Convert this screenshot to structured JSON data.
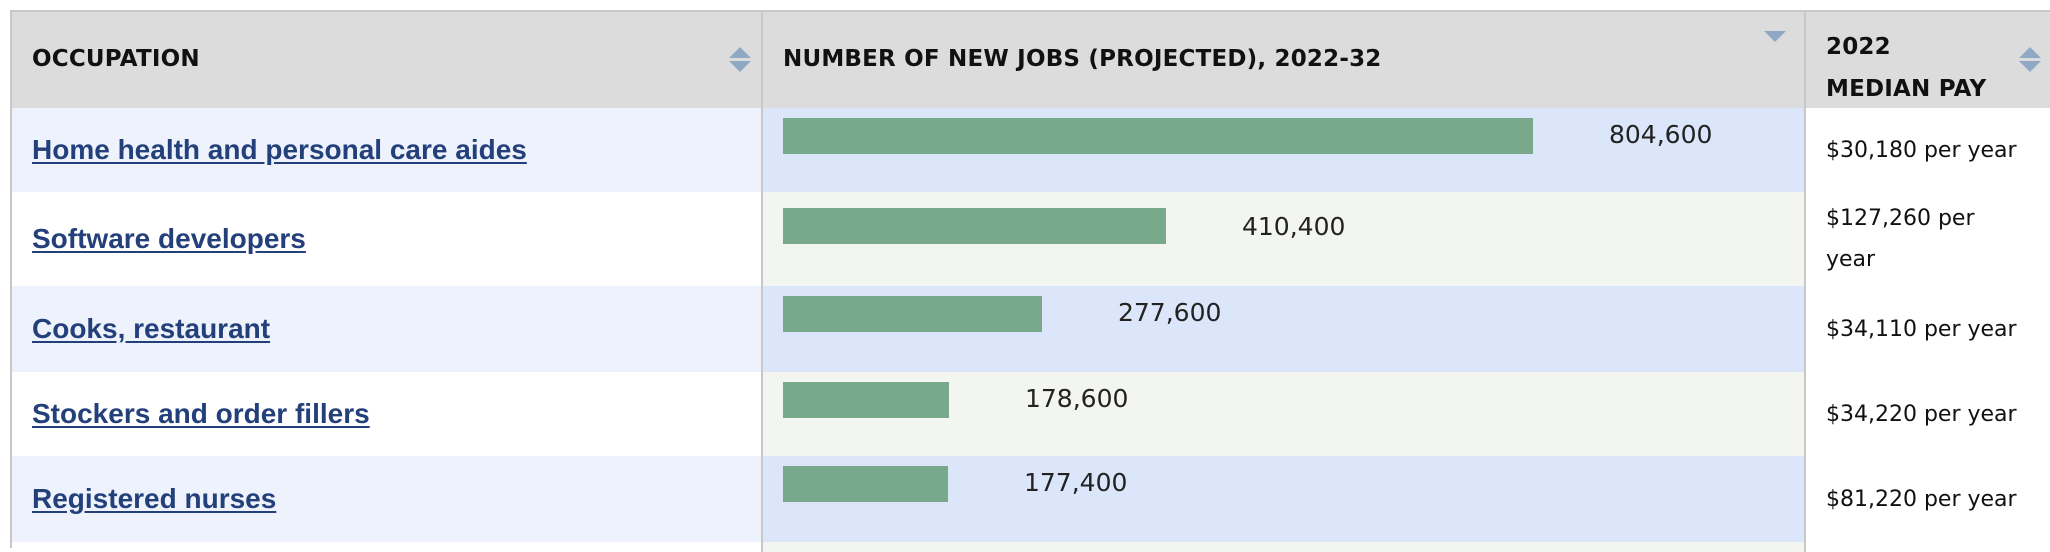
{
  "table": {
    "columns": {
      "occupation": "OCCUPATION",
      "new_jobs": "NUMBER OF NEW JOBS (PROJECTED), 2022-32",
      "median_pay": "2022 MEDIAN PAY"
    },
    "colors": {
      "bar": "#79a98b",
      "link": "#23407a",
      "header_bg": "#dcdcdc"
    },
    "bar_max": 804600,
    "rows": [
      {
        "occupation": "Home health and personal care aides",
        "new_jobs": 804600,
        "new_jobs_label": "804,600",
        "median_pay": "$30,180 per year"
      },
      {
        "occupation": "Software developers",
        "new_jobs": 410400,
        "new_jobs_label": "410,400",
        "median_pay": "$127,260 per year"
      },
      {
        "occupation": "Cooks, restaurant",
        "new_jobs": 277600,
        "new_jobs_label": "277,600",
        "median_pay": "$34,110 per year"
      },
      {
        "occupation": "Stockers and order fillers",
        "new_jobs": 178600,
        "new_jobs_label": "178,600",
        "median_pay": "$34,220 per year"
      },
      {
        "occupation": "Registered nurses",
        "new_jobs": 177400,
        "new_jobs_label": "177,400",
        "median_pay": "$81,220 per year"
      }
    ]
  }
}
